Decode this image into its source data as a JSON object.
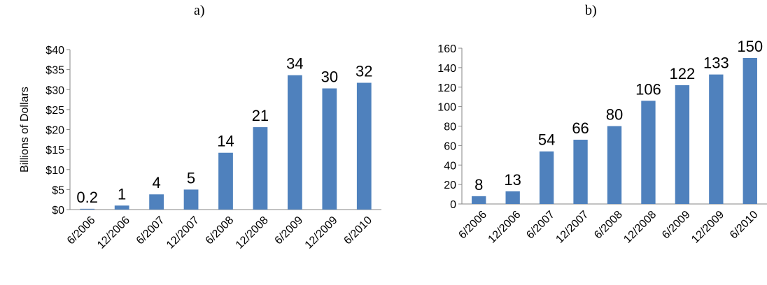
{
  "panels": {
    "a": "a)",
    "b": "b)"
  },
  "chart_data": [
    {
      "type": "bar",
      "title": "",
      "xlabel": "",
      "ylabel": "Billions of Dollars",
      "categories": [
        "6/2006",
        "12/2006",
        "6/2007",
        "12/2007",
        "6/2008",
        "12/2008",
        "6/2009",
        "12/2009",
        "6/2010"
      ],
      "values": [
        0.2,
        1,
        3.8,
        5,
        14.2,
        20.6,
        33.6,
        30.3,
        31.7
      ],
      "data_labels": [
        "0.2",
        "1",
        "4",
        "5",
        "14",
        "21",
        "34",
        "30",
        "32"
      ],
      "ylim": [
        0,
        40
      ],
      "yticks": [
        0,
        5,
        10,
        15,
        20,
        25,
        30,
        35,
        40
      ],
      "ytick_labels": [
        "$0",
        "$5",
        "$10",
        "$15",
        "$20",
        "$25",
        "$30",
        "$35",
        "$40"
      ],
      "bar_color": "#4f81bd",
      "grid": false
    },
    {
      "type": "bar",
      "title": "",
      "xlabel": "",
      "ylabel": "",
      "categories": [
        "6/2006",
        "12/2006",
        "6/2007",
        "12/2007",
        "6/2008",
        "12/2008",
        "6/2009",
        "12/2009",
        "6/2010"
      ],
      "values": [
        8,
        13,
        54,
        66,
        80,
        106,
        122,
        133,
        150
      ],
      "data_labels": [
        "8",
        "13",
        "54",
        "66",
        "80",
        "106",
        "122",
        "133",
        "150"
      ],
      "ylim": [
        0,
        160
      ],
      "yticks": [
        0,
        20,
        40,
        60,
        80,
        100,
        120,
        140,
        160
      ],
      "ytick_labels": [
        "0",
        "20",
        "40",
        "60",
        "80",
        "100",
        "120",
        "140",
        "160"
      ],
      "bar_color": "#4f81bd",
      "grid": false
    }
  ]
}
